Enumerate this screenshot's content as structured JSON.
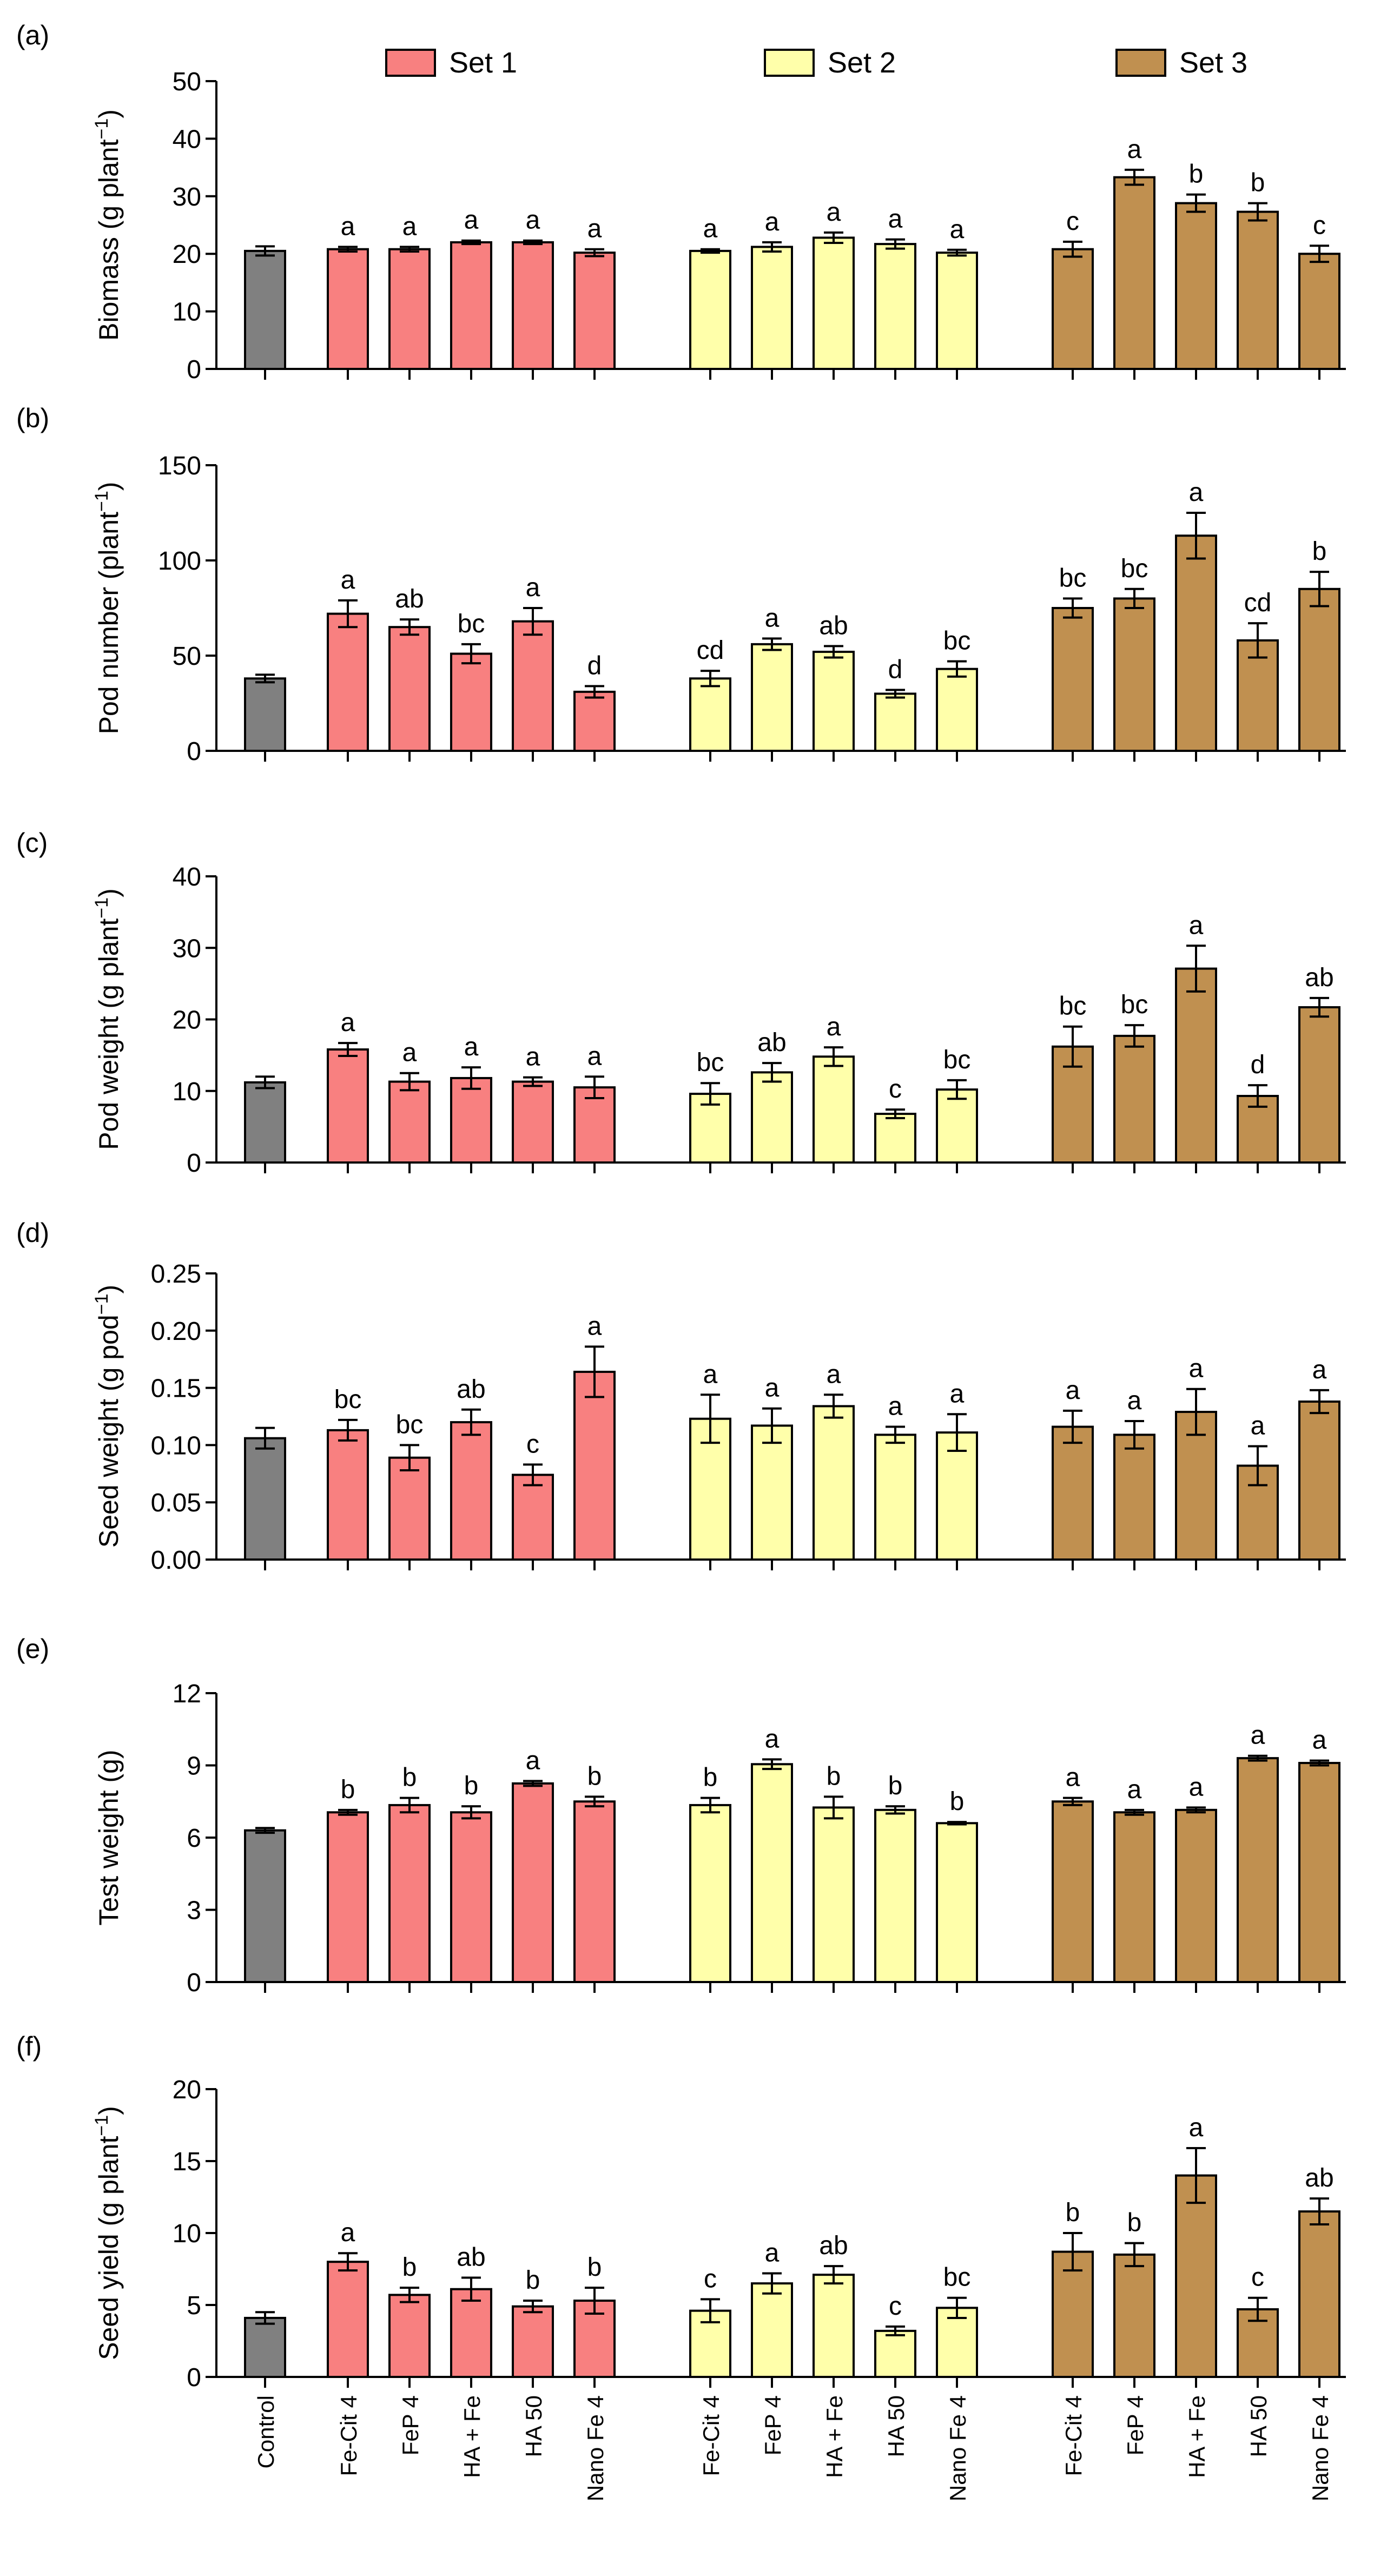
{
  "legend": [
    {
      "label": "Set 1",
      "color": "#f88080"
    },
    {
      "label": "Set 2",
      "color": "#ffffaa"
    },
    {
      "label": "Set 3",
      "color": "#c09050"
    }
  ],
  "colors": {
    "control": "#808080",
    "set1": "#f88080",
    "set2": "#ffffaa",
    "set3": "#c09050"
  },
  "x_labels": [
    "Control",
    "Fe-Cit 4",
    "FeP 4",
    "HA + Fe",
    "HA 50",
    "Nano Fe 4",
    "Fe-Cit 4",
    "FeP 4",
    "HA + Fe",
    "HA 50",
    "Nano Fe 4",
    "Fe-Cit 4",
    "FeP 4",
    "HA + Fe",
    "HA 50",
    "Nano Fe 4"
  ],
  "chart_data": [
    {
      "panel": "(a)",
      "type": "bar",
      "ylabel": "Biomass (g plant",
      "ylabel_sup": "−1",
      "ylabel_end": ")",
      "ylim": [
        0,
        50
      ],
      "yticks": [
        "0",
        "10",
        "20",
        "30",
        "40",
        "50"
      ],
      "values": [
        20.5,
        20.8,
        20.8,
        22.0,
        22.0,
        20.2,
        20.5,
        21.2,
        22.8,
        21.7,
        20.2,
        20.8,
        33.3,
        28.8,
        27.3,
        20.0
      ],
      "errors": [
        0.8,
        0.4,
        0.4,
        0.3,
        0.3,
        0.6,
        0.3,
        0.8,
        0.9,
        0.8,
        0.5,
        1.3,
        1.3,
        1.5,
        1.5,
        1.4
      ],
      "letters": [
        "",
        "a",
        "a",
        "a",
        "a",
        "a",
        "a",
        "a",
        "a",
        "a",
        "a",
        "c",
        "a",
        "b",
        "b",
        "c"
      ]
    },
    {
      "panel": "(b)",
      "type": "bar",
      "ylabel": "Pod number (plant",
      "ylabel_sup": "−1",
      "ylabel_end": ")",
      "ylim": [
        0,
        150
      ],
      "yticks": [
        "0",
        "50",
        "100",
        "150"
      ],
      "values": [
        38,
        72,
        65,
        51,
        68,
        31,
        38,
        56,
        52,
        30,
        43,
        75,
        80,
        113,
        58,
        85
      ],
      "errors": [
        2,
        7,
        4,
        5,
        7,
        3,
        4,
        3,
        3,
        2,
        4,
        5,
        5,
        12,
        9,
        9
      ],
      "letters": [
        "",
        "a",
        "ab",
        "bc",
        "a",
        "d",
        "cd",
        "a",
        "ab",
        "d",
        "bc",
        "bc",
        "bc",
        "a",
        "cd",
        "b"
      ]
    },
    {
      "panel": "(c)",
      "type": "bar",
      "ylabel": "Pod weight (g plant",
      "ylabel_sup": "−1",
      "ylabel_end": ")",
      "ylim": [
        0,
        40
      ],
      "yticks": [
        "0",
        "10",
        "20",
        "30",
        "40"
      ],
      "values": [
        11.2,
        15.8,
        11.3,
        11.8,
        11.3,
        10.5,
        9.6,
        12.6,
        14.8,
        6.8,
        10.2,
        16.2,
        17.7,
        27.1,
        9.3,
        21.7
      ],
      "errors": [
        0.8,
        0.9,
        1.2,
        1.5,
        0.6,
        1.5,
        1.5,
        1.3,
        1.3,
        0.6,
        1.3,
        2.8,
        1.5,
        3.2,
        1.5,
        1.3
      ],
      "letters": [
        "",
        "a",
        "a",
        "a",
        "a",
        "a",
        "bc",
        "ab",
        "a",
        "c",
        "bc",
        "bc",
        "bc",
        "a",
        "d",
        "ab"
      ]
    },
    {
      "panel": "(d)",
      "type": "bar",
      "ylabel": "Seed weight (g pod",
      "ylabel_sup": "−1",
      "ylabel_end": ")",
      "ylim": [
        0,
        0.25
      ],
      "yticks": [
        "0.00",
        "0.05",
        "0.10",
        "0.15",
        "0.20",
        "0.25"
      ],
      "values": [
        0.106,
        0.113,
        0.089,
        0.12,
        0.074,
        0.164,
        0.123,
        0.117,
        0.134,
        0.109,
        0.111,
        0.116,
        0.109,
        0.129,
        0.082,
        0.138
      ],
      "errors": [
        0.009,
        0.009,
        0.011,
        0.011,
        0.009,
        0.022,
        0.021,
        0.015,
        0.01,
        0.007,
        0.016,
        0.014,
        0.012,
        0.02,
        0.017,
        0.01
      ],
      "letters": [
        "",
        "bc",
        "bc",
        "ab",
        "c",
        "a",
        "a",
        "a",
        "a",
        "a",
        "a",
        "a",
        "a",
        "a",
        "a",
        "a"
      ]
    },
    {
      "panel": "(e)",
      "type": "bar",
      "ylabel": "Test weight (g)",
      "ylabel_sup": "",
      "ylabel_end": "",
      "ylim": [
        0,
        12
      ],
      "yticks": [
        "0",
        "3",
        "6",
        "9",
        "12"
      ],
      "values": [
        6.3,
        7.05,
        7.35,
        7.05,
        8.25,
        7.5,
        7.35,
        9.05,
        7.25,
        7.15,
        6.6,
        7.5,
        7.05,
        7.15,
        9.3,
        9.1
      ],
      "errors": [
        0.1,
        0.1,
        0.3,
        0.25,
        0.1,
        0.2,
        0.3,
        0.2,
        0.45,
        0.15,
        0.05,
        0.15,
        0.1,
        0.1,
        0.1,
        0.1
      ],
      "letters": [
        "",
        "b",
        "b",
        "b",
        "a",
        "b",
        "b",
        "a",
        "b",
        "b",
        "b",
        "a",
        "a",
        "a",
        "a",
        "a"
      ]
    },
    {
      "panel": "(f)",
      "type": "bar",
      "ylabel": "Seed yield (g plant",
      "ylabel_sup": "−1",
      "ylabel_end": ")",
      "ylim": [
        0,
        20
      ],
      "yticks": [
        "0",
        "5",
        "10",
        "15",
        "20"
      ],
      "values": [
        4.1,
        8.0,
        5.7,
        6.1,
        4.9,
        5.3,
        4.6,
        6.5,
        7.1,
        3.2,
        4.8,
        8.7,
        8.5,
        14.0,
        4.7,
        11.5
      ],
      "errors": [
        0.4,
        0.6,
        0.5,
        0.8,
        0.4,
        0.9,
        0.8,
        0.7,
        0.6,
        0.3,
        0.7,
        1.3,
        0.8,
        1.9,
        0.8,
        0.9
      ],
      "letters": [
        "",
        "a",
        "b",
        "ab",
        "b",
        "b",
        "c",
        "a",
        "ab",
        "c",
        "bc",
        "b",
        "b",
        "a",
        "c",
        "ab"
      ]
    }
  ]
}
